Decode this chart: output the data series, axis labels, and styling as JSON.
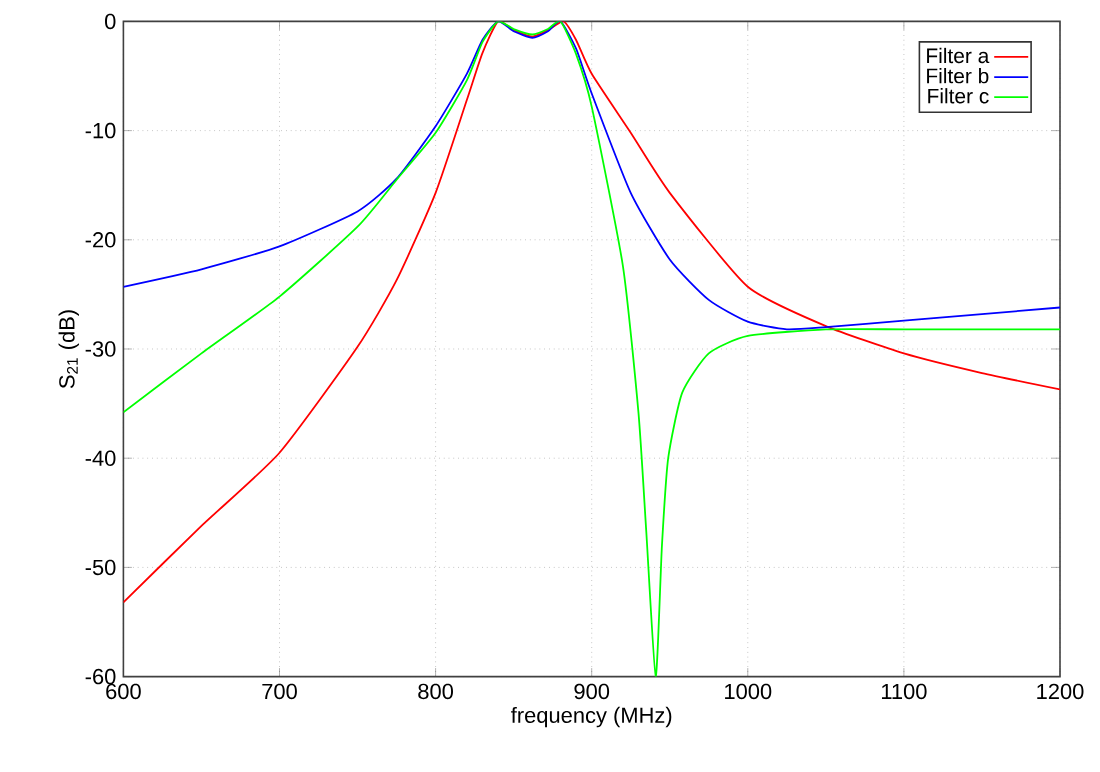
{
  "chart_data": {
    "type": "line",
    "xlabel": "frequency  (MHz)",
    "ylabel": "S$_{21}$ (dB)",
    "xlim": [
      600,
      1200
    ],
    "ylim": [
      -60,
      0
    ],
    "xticks": [
      600,
      700,
      800,
      900,
      1000,
      1100,
      1200
    ],
    "yticks": [
      -60,
      -50,
      -40,
      -30,
      -20,
      -10,
      0
    ],
    "grid": true,
    "legend": "top right",
    "marker": "none",
    "line_style": "solid",
    "series": [
      {
        "name": "Filter a",
        "color": "#ff0000",
        "x": [
          600,
          650,
          700,
          750,
          775,
          800,
          820,
          830,
          840,
          850,
          862,
          872,
          882,
          890,
          900,
          925,
          950,
          1000,
          1050,
          1100,
          1150,
          1200
        ],
        "values": [
          -53.2,
          -46.2,
          -39.5,
          -29.8,
          -23.7,
          -15.7,
          -7.2,
          -2.9,
          0,
          -0.8,
          -1.4,
          -0.8,
          0,
          -1.7,
          -4.8,
          -10.2,
          -15.7,
          -24.3,
          -27.9,
          -30.4,
          -32.2,
          -33.7
        ]
      },
      {
        "name": "Filter b",
        "color": "#0000ff",
        "x": [
          600,
          650,
          700,
          750,
          775,
          800,
          820,
          830,
          840,
          850,
          862,
          872,
          880,
          890,
          900,
          925,
          950,
          975,
          1000,
          1025,
          1050,
          1100,
          1150,
          1200
        ],
        "values": [
          -24.3,
          -22.7,
          -20.6,
          -17.4,
          -14.4,
          -9.6,
          -4.8,
          -1.7,
          0,
          -0.9,
          -1.5,
          -0.9,
          0,
          -2.5,
          -6.6,
          -15.7,
          -21.8,
          -25.5,
          -27.5,
          -28.2,
          -28.0,
          -27.4,
          -26.8,
          -26.2
        ]
      },
      {
        "name": "Filter c",
        "color": "#00ff00",
        "x": [
          600,
          650,
          700,
          750,
          775,
          800,
          820,
          830,
          840,
          850,
          862,
          872,
          880,
          890,
          900,
          920,
          930,
          935,
          941,
          945,
          949,
          958,
          975,
          1000,
          1050,
          1100,
          1150,
          1200
        ],
        "values": [
          -35.8,
          -30.4,
          -25.2,
          -18.8,
          -14.5,
          -10.2,
          -5.4,
          -1.9,
          0,
          -0.7,
          -1.2,
          -0.7,
          0,
          -3.0,
          -7.8,
          -22.4,
          -35.9,
          -46.8,
          -60,
          -48,
          -40,
          -34,
          -30.4,
          -28.8,
          -28.2,
          -28.2,
          -28.2,
          -28.2
        ]
      }
    ]
  }
}
